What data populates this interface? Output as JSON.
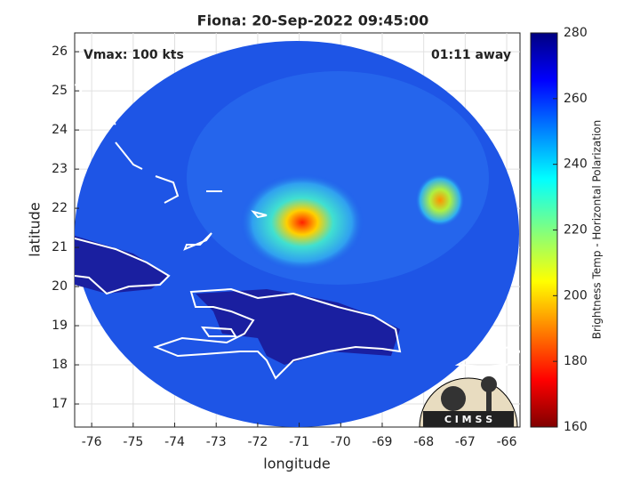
{
  "title": "Fiona: 20-Sep-2022 09:45:00",
  "annotations": {
    "vmax": "Vmax: 100 kts",
    "time_away": "01:11 away"
  },
  "x_axis": {
    "label": "longitude",
    "lim": [
      -76.41,
      -65.68
    ],
    "ticks": [
      -76,
      -75,
      -74,
      -73,
      -72,
      -71,
      -70,
      -69,
      -68,
      -67,
      -66
    ]
  },
  "y_axis": {
    "label": "latitude",
    "lim": [
      16.41,
      26.48
    ],
    "ticks": [
      17,
      18,
      19,
      20,
      21,
      22,
      23,
      24,
      25,
      26
    ]
  },
  "colorbar": {
    "label": "Brightness Temp - Horizontal Polarization",
    "lim": [
      160,
      280
    ],
    "ticks": [
      160,
      180,
      200,
      220,
      240,
      260,
      280
    ]
  },
  "logo": "C I M S S"
}
